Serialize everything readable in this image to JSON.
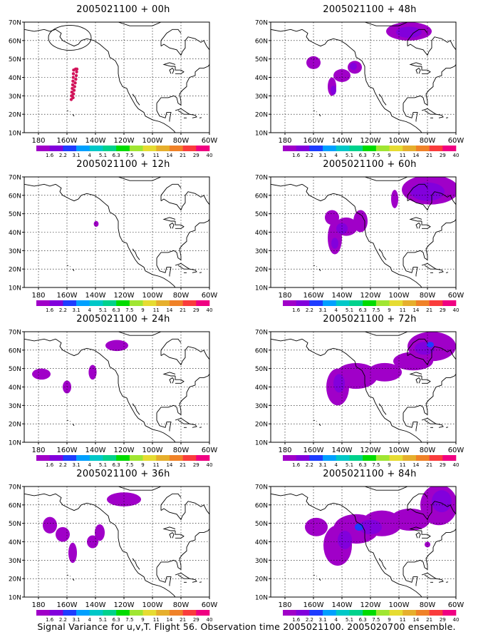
{
  "caption": "Signal Variance for u,v,T. Flight 56. Observation time 2005021100. 2005020700 ensemble.",
  "colors": [
    "#a000c8",
    "#8200dc",
    "#1e3cff",
    "#00a0ff",
    "#00c8c8",
    "#00d28c",
    "#00dc00",
    "#a0e632",
    "#e6dc32",
    "#e6af2d",
    "#f08228",
    "#fa3c3c",
    "#f00082"
  ],
  "colorbar_labels": [
    "1.6",
    "2.2",
    "3.1",
    "4",
    "5.1",
    "6.3",
    "7.5",
    "9",
    "11",
    "14",
    "21",
    "29",
    "40"
  ],
  "chart_data": [
    {
      "type": "heatmap",
      "title": "2005021100 + 00h",
      "x_tick_labels": [
        "180",
        "160W",
        "140W",
        "120W",
        "100W",
        "80W",
        "60W"
      ],
      "y_tick_labels": [
        "10N",
        "20N",
        "30N",
        "40N",
        "50N",
        "60N",
        "70N"
      ],
      "xlim": [
        -190,
        -60
      ],
      "ylim": [
        10,
        70
      ],
      "grid": true,
      "has_circle": true,
      "blobs": [],
      "points": [
        [
          -157,
          28
        ],
        [
          -156.8,
          30
        ],
        [
          -156.6,
          32
        ],
        [
          -156.3,
          34
        ],
        [
          -156,
          36
        ],
        [
          -155.8,
          38
        ],
        [
          -155.6,
          40
        ],
        [
          -155.5,
          42
        ],
        [
          -155.3,
          44
        ],
        [
          -155.7,
          29
        ],
        [
          -155.4,
          31
        ],
        [
          -155,
          33
        ],
        [
          -154.6,
          35
        ],
        [
          -154.2,
          37
        ],
        [
          -153.8,
          39
        ],
        [
          -153.5,
          41
        ],
        [
          -153.2,
          43
        ],
        [
          -153,
          44.5
        ],
        [
          -154,
          44.5
        ]
      ]
    },
    {
      "type": "heatmap",
      "title": "2005021100 + 48h",
      "x_tick_labels": [
        "180",
        "160W",
        "140W",
        "120W",
        "100W",
        "80W",
        "60W"
      ],
      "y_tick_labels": [
        "10N",
        "20N",
        "30N",
        "40N",
        "50N",
        "60N",
        "70N"
      ],
      "xlim": [
        -190,
        -60
      ],
      "ylim": [
        10,
        70
      ],
      "grid": true,
      "has_circle": false,
      "points": [],
      "blobs": [
        {
          "cx": -160,
          "cy": 48,
          "rx": 5,
          "ry": 3.5,
          "c": 0
        },
        {
          "cx": -147,
          "cy": 35,
          "rx": 3,
          "ry": 5,
          "c": 0
        },
        {
          "cx": -140,
          "cy": 41,
          "rx": 6,
          "ry": 3.5,
          "c": 0
        },
        {
          "cx": -131,
          "cy": 45.5,
          "rx": 5,
          "ry": 3.5,
          "c": 0
        },
        {
          "cx": -146,
          "cy": 33,
          "rx": 2,
          "ry": 2.5,
          "c": 1
        },
        {
          "cx": -132,
          "cy": 46,
          "rx": 2.5,
          "ry": 2,
          "c": 1
        },
        {
          "cx": -93,
          "cy": 65,
          "rx": 16,
          "ry": 5,
          "c": 0
        },
        {
          "cx": -93,
          "cy": 64.5,
          "rx": 9,
          "ry": 3,
          "c": 1
        }
      ]
    },
    {
      "type": "heatmap",
      "title": "2005021100 + 12h",
      "x_tick_labels": [
        "180",
        "160W",
        "140W",
        "120W",
        "100W",
        "80W",
        "60W"
      ],
      "y_tick_labels": [
        "10N",
        "20N",
        "30N",
        "40N",
        "50N",
        "60N",
        "70N"
      ],
      "xlim": [
        -190,
        -60
      ],
      "ylim": [
        10,
        70
      ],
      "grid": true,
      "has_circle": false,
      "points": [],
      "blobs": [
        {
          "cx": -139.5,
          "cy": 44.5,
          "rx": 1.7,
          "ry": 1.6,
          "c": 0
        }
      ]
    },
    {
      "type": "heatmap",
      "title": "2005021100 + 60h",
      "x_tick_labels": [
        "180",
        "160W",
        "140W",
        "120W",
        "100W",
        "80W",
        "60W"
      ],
      "y_tick_labels": [
        "10N",
        "20N",
        "30N",
        "40N",
        "50N",
        "60N",
        "70N"
      ],
      "xlim": [
        -190,
        -60
      ],
      "ylim": [
        10,
        70
      ],
      "grid": true,
      "has_circle": false,
      "points": [],
      "blobs": [
        {
          "cx": -147,
          "cy": 48,
          "rx": 5,
          "ry": 4,
          "c": 0
        },
        {
          "cx": -145,
          "cy": 37,
          "rx": 5,
          "ry": 9,
          "c": 0
        },
        {
          "cx": -137,
          "cy": 43,
          "rx": 8,
          "ry": 5,
          "c": 0
        },
        {
          "cx": -127,
          "cy": 46,
          "rx": 5,
          "ry": 6,
          "c": 0
        },
        {
          "cx": -103,
          "cy": 58,
          "rx": 2.5,
          "ry": 5,
          "c": 0
        },
        {
          "cx": -140,
          "cy": 42,
          "rx": 4,
          "ry": 3,
          "c": 1
        },
        {
          "cx": -145,
          "cy": 34,
          "rx": 2.5,
          "ry": 3,
          "c": 1
        },
        {
          "cx": -78,
          "cy": 63,
          "rx": 20,
          "ry": 8,
          "c": 0
        },
        {
          "cx": -80,
          "cy": 62,
          "rx": 12,
          "ry": 5,
          "c": 1
        }
      ]
    },
    {
      "type": "heatmap",
      "title": "2005021100 + 24h",
      "x_tick_labels": [
        "180",
        "160W",
        "140W",
        "120W",
        "100W",
        "80W",
        "60W"
      ],
      "y_tick_labels": [
        "10N",
        "20N",
        "30N",
        "40N",
        "50N",
        "60N",
        "70N"
      ],
      "xlim": [
        -190,
        -60
      ],
      "ylim": [
        10,
        70
      ],
      "grid": true,
      "has_circle": false,
      "points": [],
      "blobs": [
        {
          "cx": -178,
          "cy": 47,
          "rx": 6.5,
          "ry": 3,
          "c": 0
        },
        {
          "cx": -160,
          "cy": 40,
          "rx": 3,
          "ry": 3.5,
          "c": 0
        },
        {
          "cx": -142,
          "cy": 48,
          "rx": 2.8,
          "ry": 4,
          "c": 0
        },
        {
          "cx": -125,
          "cy": 62.5,
          "rx": 8,
          "ry": 3,
          "c": 0
        }
      ]
    },
    {
      "type": "heatmap",
      "title": "2005021100 + 72h",
      "x_tick_labels": [
        "180",
        "160W",
        "140W",
        "120W",
        "100W",
        "80W",
        "60W"
      ],
      "y_tick_labels": [
        "10N",
        "20N",
        "30N",
        "40N",
        "50N",
        "60N",
        "70N"
      ],
      "xlim": [
        -190,
        -60
      ],
      "ylim": [
        10,
        70
      ],
      "grid": true,
      "has_circle": false,
      "points": [],
      "blobs": [
        {
          "cx": -143,
          "cy": 40,
          "rx": 8,
          "ry": 10,
          "c": 0
        },
        {
          "cx": -130,
          "cy": 46,
          "rx": 15,
          "ry": 7,
          "c": 0
        },
        {
          "cx": -110,
          "cy": 48,
          "rx": 12,
          "ry": 5,
          "c": 0
        },
        {
          "cx": -90,
          "cy": 54,
          "rx": 14,
          "ry": 5,
          "c": 0
        },
        {
          "cx": -77,
          "cy": 62,
          "rx": 17,
          "ry": 8,
          "c": 0
        },
        {
          "cx": -142,
          "cy": 42,
          "rx": 4,
          "ry": 5,
          "c": 1
        },
        {
          "cx": -82,
          "cy": 61,
          "rx": 7,
          "ry": 3.5,
          "c": 1
        },
        {
          "cx": -78,
          "cy": 63,
          "rx": 2.5,
          "ry": 1.5,
          "c": 2
        }
      ]
    },
    {
      "type": "heatmap",
      "title": "2005021100 + 36h",
      "x_tick_labels": [
        "180",
        "160W",
        "140W",
        "120W",
        "100W",
        "80W",
        "60W"
      ],
      "y_tick_labels": [
        "10N",
        "20N",
        "30N",
        "40N",
        "50N",
        "60N",
        "70N"
      ],
      "xlim": [
        -190,
        -60
      ],
      "ylim": [
        10,
        70
      ],
      "grid": true,
      "has_circle": false,
      "points": [],
      "blobs": [
        {
          "cx": -172,
          "cy": 49,
          "rx": 5,
          "ry": 4.5,
          "c": 0
        },
        {
          "cx": -163,
          "cy": 44,
          "rx": 5,
          "ry": 4,
          "c": 0
        },
        {
          "cx": -156,
          "cy": 34,
          "rx": 3,
          "ry": 5.5,
          "c": 0
        },
        {
          "cx": -142,
          "cy": 40,
          "rx": 4,
          "ry": 3.5,
          "c": 0
        },
        {
          "cx": -137,
          "cy": 45,
          "rx": 3.5,
          "ry": 4.5,
          "c": 0
        },
        {
          "cx": -120,
          "cy": 63,
          "rx": 12,
          "ry": 3.8,
          "c": 0
        }
      ]
    },
    {
      "type": "heatmap",
      "title": "2005021100 + 84h",
      "x_tick_labels": [
        "180",
        "160W",
        "140W",
        "120W",
        "100W",
        "80W",
        "60W"
      ],
      "y_tick_labels": [
        "10N",
        "20N",
        "30N",
        "40N",
        "50N",
        "60N",
        "70N"
      ],
      "xlim": [
        -190,
        -60
      ],
      "ylim": [
        10,
        70
      ],
      "grid": true,
      "has_circle": false,
      "points": [],
      "blobs": [
        {
          "cx": -158,
          "cy": 48,
          "rx": 8,
          "ry": 5,
          "c": 0
        },
        {
          "cx": -143,
          "cy": 38,
          "rx": 10,
          "ry": 11,
          "c": 0
        },
        {
          "cx": -130,
          "cy": 47,
          "rx": 16,
          "ry": 8,
          "c": 0
        },
        {
          "cx": -112,
          "cy": 50,
          "rx": 14,
          "ry": 7,
          "c": 0
        },
        {
          "cx": -92,
          "cy": 52,
          "rx": 14,
          "ry": 6,
          "c": 0
        },
        {
          "cx": -72,
          "cy": 60,
          "rx": 13,
          "ry": 11,
          "c": 0
        },
        {
          "cx": -80,
          "cy": 38.5,
          "rx": 2,
          "ry": 1.5,
          "c": 0
        },
        {
          "cx": -138,
          "cy": 41,
          "rx": 5,
          "ry": 5,
          "c": 1
        },
        {
          "cx": -120,
          "cy": 48,
          "rx": 8,
          "ry": 4,
          "c": 1
        },
        {
          "cx": -70,
          "cy": 62,
          "rx": 7,
          "ry": 6,
          "c": 1
        },
        {
          "cx": -128,
          "cy": 48,
          "rx": 3,
          "ry": 2,
          "c": 2
        }
      ]
    }
  ]
}
